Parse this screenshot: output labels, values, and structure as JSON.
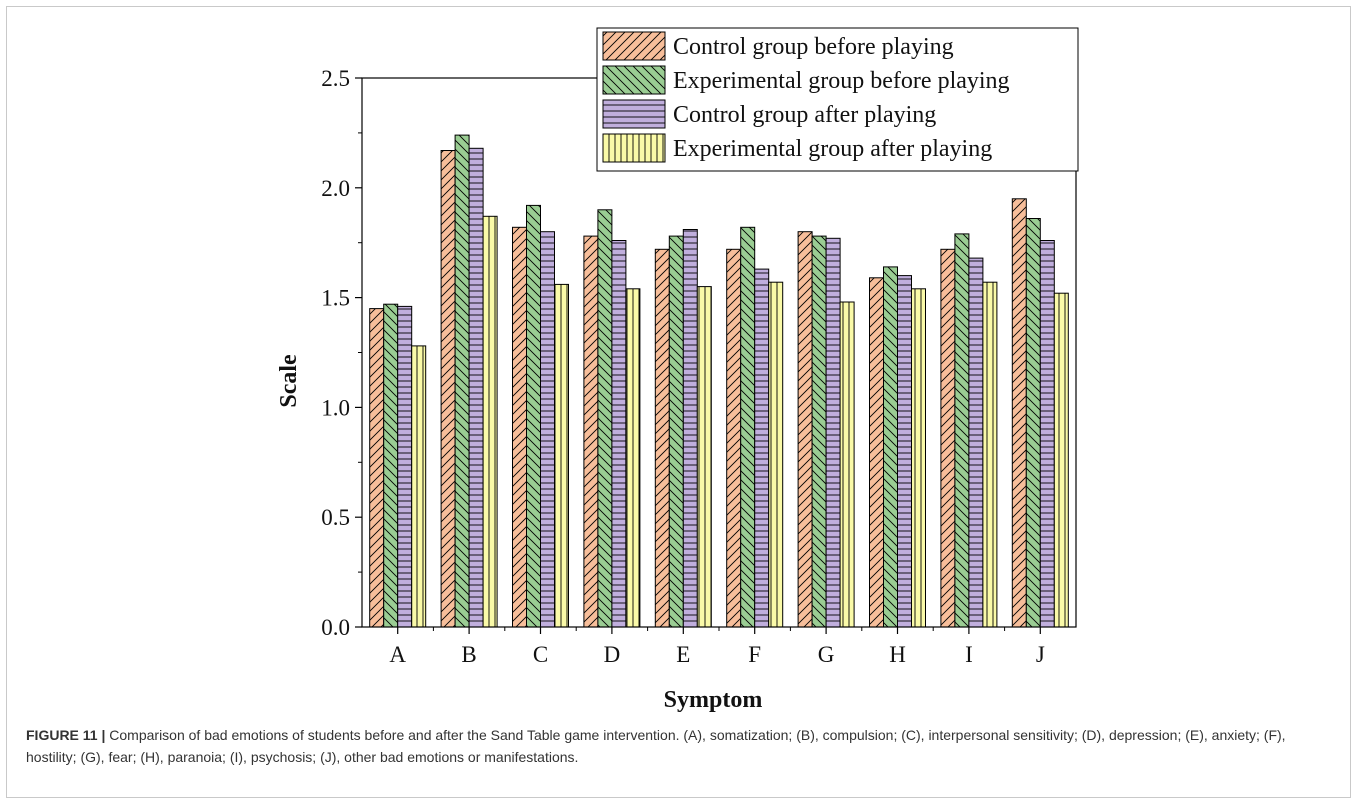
{
  "figure": {
    "label": "FIGURE 11 |",
    "caption": "Comparison of bad emotions of students before and after the Sand Table game intervention. (A), somatization; (B), compulsion; (C), interpersonal sensitivity; (D), depression; (E), anxiety; (F), hostility; (G), fear; (H), paranoia; (I), psychosis; (J), other bad emotions or manifestations."
  },
  "chart_data": {
    "type": "bar",
    "title": "",
    "xlabel": "Symptom",
    "ylabel": "Scale",
    "ylim": [
      0,
      2.5
    ],
    "yticks": [
      "0.0",
      "0.5",
      "1.0",
      "1.5",
      "2.0",
      "2.5"
    ],
    "categories": [
      "A",
      "B",
      "C",
      "D",
      "E",
      "F",
      "G",
      "H",
      "I",
      "J"
    ],
    "legend_position": "top-right",
    "grid": false,
    "series": [
      {
        "name": "Control group before playing",
        "color": "#f7be9a",
        "pattern": "forward-diagonal",
        "values": [
          1.45,
          2.17,
          1.82,
          1.78,
          1.72,
          1.72,
          1.8,
          1.59,
          1.72,
          1.95
        ]
      },
      {
        "name": "Experimental group before playing",
        "color": "#9acd93",
        "pattern": "back-diagonal",
        "values": [
          1.47,
          2.24,
          1.92,
          1.9,
          1.78,
          1.82,
          1.78,
          1.64,
          1.79,
          1.86
        ]
      },
      {
        "name": "Control group after playing",
        "color": "#c0aedd",
        "pattern": "horizontal",
        "values": [
          1.46,
          2.18,
          1.8,
          1.76,
          1.81,
          1.63,
          1.77,
          1.6,
          1.68,
          1.76
        ]
      },
      {
        "name": "Experimental group after playing",
        "color": "#fafaa8",
        "pattern": "vertical",
        "values": [
          1.28,
          1.87,
          1.56,
          1.54,
          1.55,
          1.57,
          1.48,
          1.54,
          1.57,
          1.52
        ]
      }
    ]
  }
}
